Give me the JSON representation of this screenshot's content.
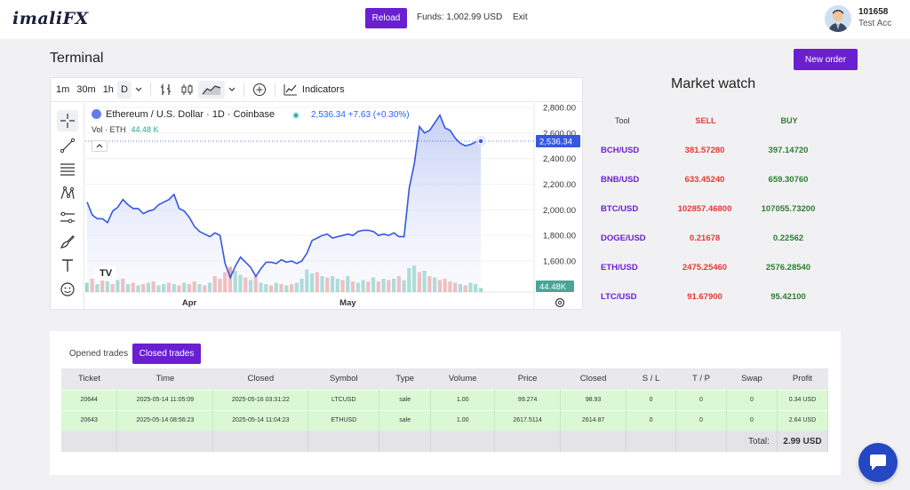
{
  "header": {
    "logo": "imaliFX",
    "reload_label": "Reload",
    "funds_text": "Funds: 1,002.99 USD",
    "exit_label": "Exit",
    "account_id": "101658",
    "account_name": "Test Acc"
  },
  "page": {
    "title": "Terminal",
    "new_order_label": "New order"
  },
  "chart": {
    "toolbar": {
      "intervals": [
        "1m",
        "30m",
        "1h",
        "D"
      ],
      "selected_interval": "D",
      "indicators_label": "Indicators"
    },
    "symbol_title": "Ethereum / U.S. Dollar · 1D · Coinbase",
    "price_line": "2,536.34 +7.63 (+0.30%)",
    "volume_label": "Vol · ETH",
    "volume_value": "44.48 K",
    "last_price_tag": "2,536.34",
    "volume_tag": "44.48K",
    "watermark": "TV"
  },
  "chart_data": {
    "type": "area",
    "title": "Ethereum / U.S. Dollar · 1D · Coinbase",
    "x_tick_labels": [
      "Apr",
      "May"
    ],
    "y_tick_labels": [
      "1,600.00",
      "1,800.00",
      "2,000.00",
      "2,200.00",
      "2,400.00",
      "2,600.00",
      "2,800.00"
    ],
    "ylim": [
      1400,
      2800
    ],
    "series": [
      {
        "values": [
          2060,
          1960,
          1930,
          1930,
          1900,
          1990,
          2020,
          2080,
          2040,
          2010,
          2010,
          1970,
          1990,
          2000,
          2040,
          2060,
          2080,
          2120,
          2010,
          1990,
          1940,
          1870,
          1830,
          1810,
          1790,
          1820,
          1800,
          1580,
          1470,
          1560,
          1630,
          1590,
          1550,
          1480,
          1540,
          1590,
          1590,
          1580,
          1610,
          1590,
          1600,
          1580,
          1600,
          1660,
          1760,
          1780,
          1800,
          1810,
          1780,
          1790,
          1800,
          1810,
          1800,
          1830,
          1840,
          1840,
          1830,
          1800,
          1810,
          1800,
          1820,
          1790,
          1790,
          2170,
          2360,
          2650,
          2600,
          2620,
          2680,
          2740,
          2640,
          2620,
          2560,
          2520,
          2500,
          2510,
          2530,
          2536.34
        ]
      }
    ],
    "volume": [
      0.35,
      0.5,
      0.3,
      0.6,
      0.4,
      0.3,
      0.45,
      0.5,
      0.3,
      0.35,
      0.25,
      0.3,
      0.35,
      0.4,
      0.25,
      0.3,
      0.35,
      0.3,
      0.25,
      0.35,
      0.3,
      0.4,
      0.3,
      0.25,
      0.35,
      0.6,
      0.5,
      0.75,
      0.95,
      0.8,
      0.65,
      0.55,
      0.45,
      0.6,
      0.35,
      0.3,
      0.25,
      0.35,
      0.3,
      0.25,
      0.3,
      0.35,
      0.5,
      0.85,
      0.7,
      0.75,
      0.6,
      0.55,
      0.6,
      0.5,
      0.45,
      0.6,
      0.4,
      0.35,
      0.45,
      0.4,
      0.55,
      0.4,
      0.5,
      0.45,
      0.5,
      0.6,
      0.45,
      0.9,
      1.0,
      0.75,
      0.8,
      0.6,
      0.55,
      0.45,
      0.5,
      0.4,
      0.35,
      0.3,
      0.25,
      0.35,
      0.3,
      0.15
    ],
    "volume_up": [
      1,
      0,
      1,
      0,
      1,
      0,
      1,
      0,
      1,
      0,
      1,
      0,
      1,
      0,
      1,
      1,
      0,
      1,
      0,
      1,
      0,
      0,
      1,
      0,
      1,
      0,
      0,
      0,
      0,
      1,
      1,
      0,
      1,
      0,
      1,
      1,
      0,
      1,
      0,
      1,
      0,
      1,
      1,
      1,
      1,
      0,
      1,
      0,
      1,
      1,
      0,
      1,
      0,
      1,
      1,
      0,
      1,
      0,
      1,
      0,
      1,
      0,
      1,
      1,
      1,
      0,
      1,
      0,
      1,
      0,
      0,
      0,
      0,
      1,
      0,
      1,
      1,
      1
    ],
    "grid": true
  },
  "market_watch": {
    "title": "Market watch",
    "headers": {
      "tool": "Tool",
      "sell": "SELL",
      "buy": "BUY"
    },
    "rows": [
      {
        "tool": "BCH/USD",
        "sell": "381.57280",
        "buy": "397.14720"
      },
      {
        "tool": "BNB/USD",
        "sell": "633.45240",
        "buy": "659.30760"
      },
      {
        "tool": "BTC/USD",
        "sell": "102857.46800",
        "buy": "107055.73200"
      },
      {
        "tool": "DOGE/USD",
        "sell": "0.21678",
        "buy": "0.22562"
      },
      {
        "tool": "ETH/USD",
        "sell": "2475.25460",
        "buy": "2576.28540"
      },
      {
        "tool": "LTC/USD",
        "sell": "91.67900",
        "buy": "95.42100"
      }
    ]
  },
  "trades": {
    "tab_opened": "Opened trades",
    "tab_closed": "Closed trades",
    "columns": [
      "Ticket",
      "Time",
      "Closed",
      "Symbol",
      "Type",
      "Volume",
      "Price",
      "Closed",
      "S / L",
      "T / P",
      "Swap",
      "Profit"
    ],
    "rows": [
      [
        "20644",
        "2025-05-14 11:05:09",
        "2025-05-16 03:31:22",
        "LTCUSD",
        "sale",
        "1.00",
        "99.274",
        "98.93",
        "0",
        "0",
        "0",
        "0.34 USD"
      ],
      [
        "20643",
        "2025-05-14 08:56:23",
        "2025-05-14 11:04:23",
        "ETHUSD",
        "sale",
        "1.00",
        "2617.5114",
        "2614.87",
        "0",
        "0",
        "0",
        "2.64 USD"
      ]
    ],
    "total_label": "Total:",
    "total_value": "2.99 USD"
  }
}
